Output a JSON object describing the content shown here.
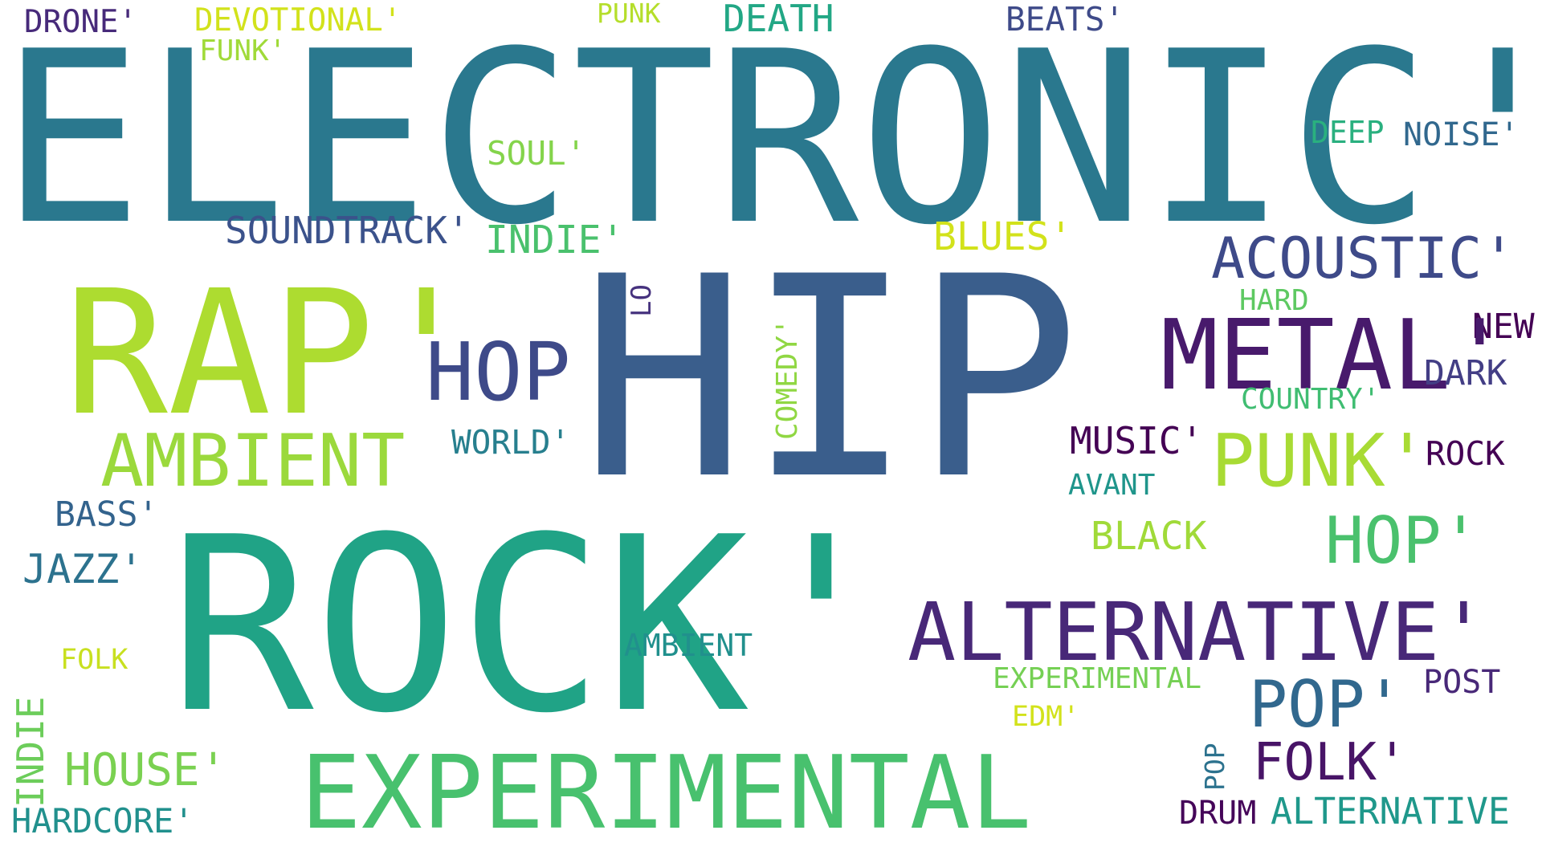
{
  "background": "#ffffff",
  "words": [
    {
      "text": "DRONE'",
      "color": "#472a7a"
    },
    {
      "text": "DEVOTIONAL'",
      "color": "#d2e21b"
    },
    {
      "text": "PUNK",
      "color": "#b5de2b"
    },
    {
      "text": "DEATH",
      "color": "#22a785"
    },
    {
      "text": "BEATS'",
      "color": "#3e4a89"
    },
    {
      "text": "FUNK'",
      "color": "#a0da39"
    },
    {
      "text": "ELECTRONIC'",
      "color": "#2a788e"
    },
    {
      "text": "DEEP",
      "color": "#2ab07f"
    },
    {
      "text": "NOISE'",
      "color": "#31688e"
    },
    {
      "text": "SOUL'",
      "color": "#84d44b"
    },
    {
      "text": "SOUNDTRACK'",
      "color": "#3b528b"
    },
    {
      "text": "INDIE'",
      "color": "#4ac16d"
    },
    {
      "text": "BLUES'",
      "color": "#d2e21b"
    },
    {
      "text": "ACOUSTIC'",
      "color": "#3e4a89"
    },
    {
      "text": "RAP'",
      "color": "#addc30"
    },
    {
      "text": "HIP",
      "color": "#3a5e8c"
    },
    {
      "text": "LO",
      "color": "#46327e"
    },
    {
      "text": "HARD",
      "color": "#5ec962"
    },
    {
      "text": "NEW",
      "color": "#440154"
    },
    {
      "text": "METAL'",
      "color": "#481a6c"
    },
    {
      "text": "HOP",
      "color": "#3e4a89"
    },
    {
      "text": "COMEDY'",
      "color": "#90d743"
    },
    {
      "text": "DARK",
      "color": "#433e85"
    },
    {
      "text": "COUNTRY'",
      "color": "#40bd72"
    },
    {
      "text": "AMBIENT",
      "color": "#9bd93c"
    },
    {
      "text": "WORLD'",
      "color": "#277f8e"
    },
    {
      "text": "MUSIC'",
      "color": "#440154"
    },
    {
      "text": "PUNK'",
      "color": "#a8db34"
    },
    {
      "text": "ROCK",
      "color": "#440154"
    },
    {
      "text": "AVANT",
      "color": "#1f958b"
    },
    {
      "text": "BASS'",
      "color": "#33638d"
    },
    {
      "text": "BLACK",
      "color": "#a0da39"
    },
    {
      "text": "HOP'",
      "color": "#4ac16d"
    },
    {
      "text": "ROCK'",
      "color": "#20a386"
    },
    {
      "text": "JAZZ'",
      "color": "#2c728e"
    },
    {
      "text": "ALTERNATIVE'",
      "color": "#482878"
    },
    {
      "text": "AMBIENT",
      "color": "#21908d"
    },
    {
      "text": "FOLK",
      "color": "#c8e020"
    },
    {
      "text": "EXPERIMENTAL",
      "color": "#75d054"
    },
    {
      "text": "POST",
      "color": "#482878"
    },
    {
      "text": "POP'",
      "color": "#31688e"
    },
    {
      "text": "EDM'",
      "color": "#d2e21b"
    },
    {
      "text": "INDIE",
      "color": "#6ccd5a"
    },
    {
      "text": "HOUSE'",
      "color": "#7ad151"
    },
    {
      "text": "EXPERIMENTAL",
      "color": "#48c16e"
    },
    {
      "text": "POP",
      "color": "#2c728e"
    },
    {
      "text": "FOLK'",
      "color": "#481467"
    },
    {
      "text": "HARDCORE'",
      "color": "#21908d"
    },
    {
      "text": "DRUM",
      "color": "#450559"
    },
    {
      "text": "ALTERNATIVE",
      "color": "#1f988b"
    }
  ]
}
